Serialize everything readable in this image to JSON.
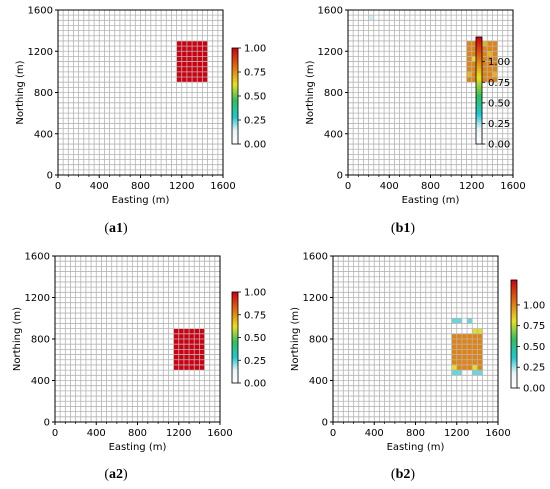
{
  "panels": [
    {
      "id": "a1",
      "caption_letter": "a",
      "caption_num": "1"
    },
    {
      "id": "b1",
      "caption_letter": "b",
      "caption_num": "1"
    },
    {
      "id": "a2",
      "caption_letter": "a",
      "caption_num": "2"
    },
    {
      "id": "b2",
      "caption_letter": "b",
      "caption_num": "2"
    }
  ],
  "chart_data": [
    {
      "type": "heatmap",
      "panel": "a1",
      "xlabel": "Easting (m)",
      "ylabel": "Northing (m)",
      "xlim": [
        0,
        1600
      ],
      "ylim": [
        0,
        1600
      ],
      "xticks": [
        "0",
        "400",
        "800",
        "1200",
        "1600"
      ],
      "yticks": [
        "0",
        "400",
        "800",
        "1200",
        "1600"
      ],
      "grid": true,
      "cell_size_m": 50,
      "colorbar": {
        "min": 0,
        "max": 1,
        "ticks": [
          "0.00",
          "0.25",
          "0.50",
          "0.75",
          "1.00"
        ]
      },
      "cells": [
        {
          "x0": 1150,
          "x1": 1450,
          "y0": 900,
          "y1": 1300,
          "value": 1.0
        }
      ]
    },
    {
      "type": "heatmap",
      "panel": "b1",
      "xlabel": "Easting (m)",
      "ylabel": "Northing (m)",
      "xlim": [
        0,
        1600
      ],
      "ylim": [
        0,
        1600
      ],
      "xticks": [
        "0",
        "400",
        "800",
        "1200",
        "1600"
      ],
      "yticks": [
        "0",
        "400",
        "800",
        "1200",
        "1600"
      ],
      "grid": true,
      "cell_size_m": 50,
      "colorbar": {
        "min": 0,
        "max": 1.3,
        "ticks": [
          "0.00",
          "0.25",
          "0.50",
          "0.75",
          "1.00"
        ]
      },
      "cells": [
        {
          "x0": 1150,
          "x1": 1450,
          "y0": 900,
          "y1": 1300,
          "value": 1.0
        },
        {
          "x0": 1300,
          "x1": 1350,
          "y0": 1250,
          "y1": 1300,
          "value": 0.9
        },
        {
          "x0": 1200,
          "x1": 1250,
          "y0": 1100,
          "y1": 1150,
          "value": 0.8
        },
        {
          "x0": 1350,
          "x1": 1400,
          "y0": 1150,
          "y1": 1200,
          "value": 0.9
        },
        {
          "x0": 1250,
          "x1": 1300,
          "y0": 1000,
          "y1": 1050,
          "value": 0.85
        },
        {
          "x0": 1400,
          "x1": 1450,
          "y0": 950,
          "y1": 1000,
          "value": 0.9
        },
        {
          "x0": 1150,
          "x1": 1200,
          "y0": 950,
          "y1": 1000,
          "value": 0.9
        },
        {
          "x0": 200,
          "x1": 250,
          "y0": 1500,
          "y1": 1550,
          "value": 0.2
        }
      ]
    },
    {
      "type": "heatmap",
      "panel": "a2",
      "xlabel": "Easting (m)",
      "ylabel": "Northing (m)",
      "xlim": [
        0,
        1600
      ],
      "ylim": [
        0,
        1600
      ],
      "xticks": [
        "0",
        "400",
        "800",
        "1200",
        "1600"
      ],
      "yticks": [
        "0",
        "400",
        "800",
        "1200",
        "1600"
      ],
      "grid": true,
      "cell_size_m": 50,
      "colorbar": {
        "min": 0,
        "max": 1,
        "ticks": [
          "0.00",
          "0.25",
          "0.50",
          "0.75",
          "1.00"
        ]
      },
      "cells": [
        {
          "x0": 1150,
          "x1": 1450,
          "y0": 500,
          "y1": 900,
          "value": 1.0
        }
      ]
    },
    {
      "type": "heatmap",
      "panel": "b2",
      "xlabel": "Easting (m)",
      "ylabel": "Northing (m)",
      "xlim": [
        0,
        1600
      ],
      "ylim": [
        0,
        1600
      ],
      "xticks": [
        "0",
        "400",
        "800",
        "1200",
        "1600"
      ],
      "yticks": [
        "0",
        "400",
        "800",
        "1200",
        "1600"
      ],
      "grid": true,
      "cell_size_m": 50,
      "colorbar": {
        "min": 0,
        "max": 1.3,
        "ticks": [
          "0.00",
          "0.25",
          "0.50",
          "0.75",
          "1.00"
        ]
      },
      "cells": [
        {
          "x0": 1150,
          "x1": 1450,
          "y0": 500,
          "y1": 850,
          "value": 1.0
        },
        {
          "x0": 1150,
          "x1": 1250,
          "y0": 950,
          "y1": 1000,
          "value": 0.3
        },
        {
          "x0": 1300,
          "x1": 1350,
          "y0": 950,
          "y1": 1000,
          "value": 0.3
        },
        {
          "x0": 1350,
          "x1": 1450,
          "y0": 850,
          "y1": 900,
          "value": 0.8
        },
        {
          "x0": 1150,
          "x1": 1200,
          "y0": 500,
          "y1": 550,
          "value": 0.8
        },
        {
          "x0": 1350,
          "x1": 1400,
          "y0": 500,
          "y1": 550,
          "value": 0.8
        },
        {
          "x0": 1150,
          "x1": 1250,
          "y0": 450,
          "y1": 500,
          "value": 0.3
        },
        {
          "x0": 1350,
          "x1": 1450,
          "y0": 450,
          "y1": 500,
          "value": 0.3
        }
      ]
    }
  ]
}
